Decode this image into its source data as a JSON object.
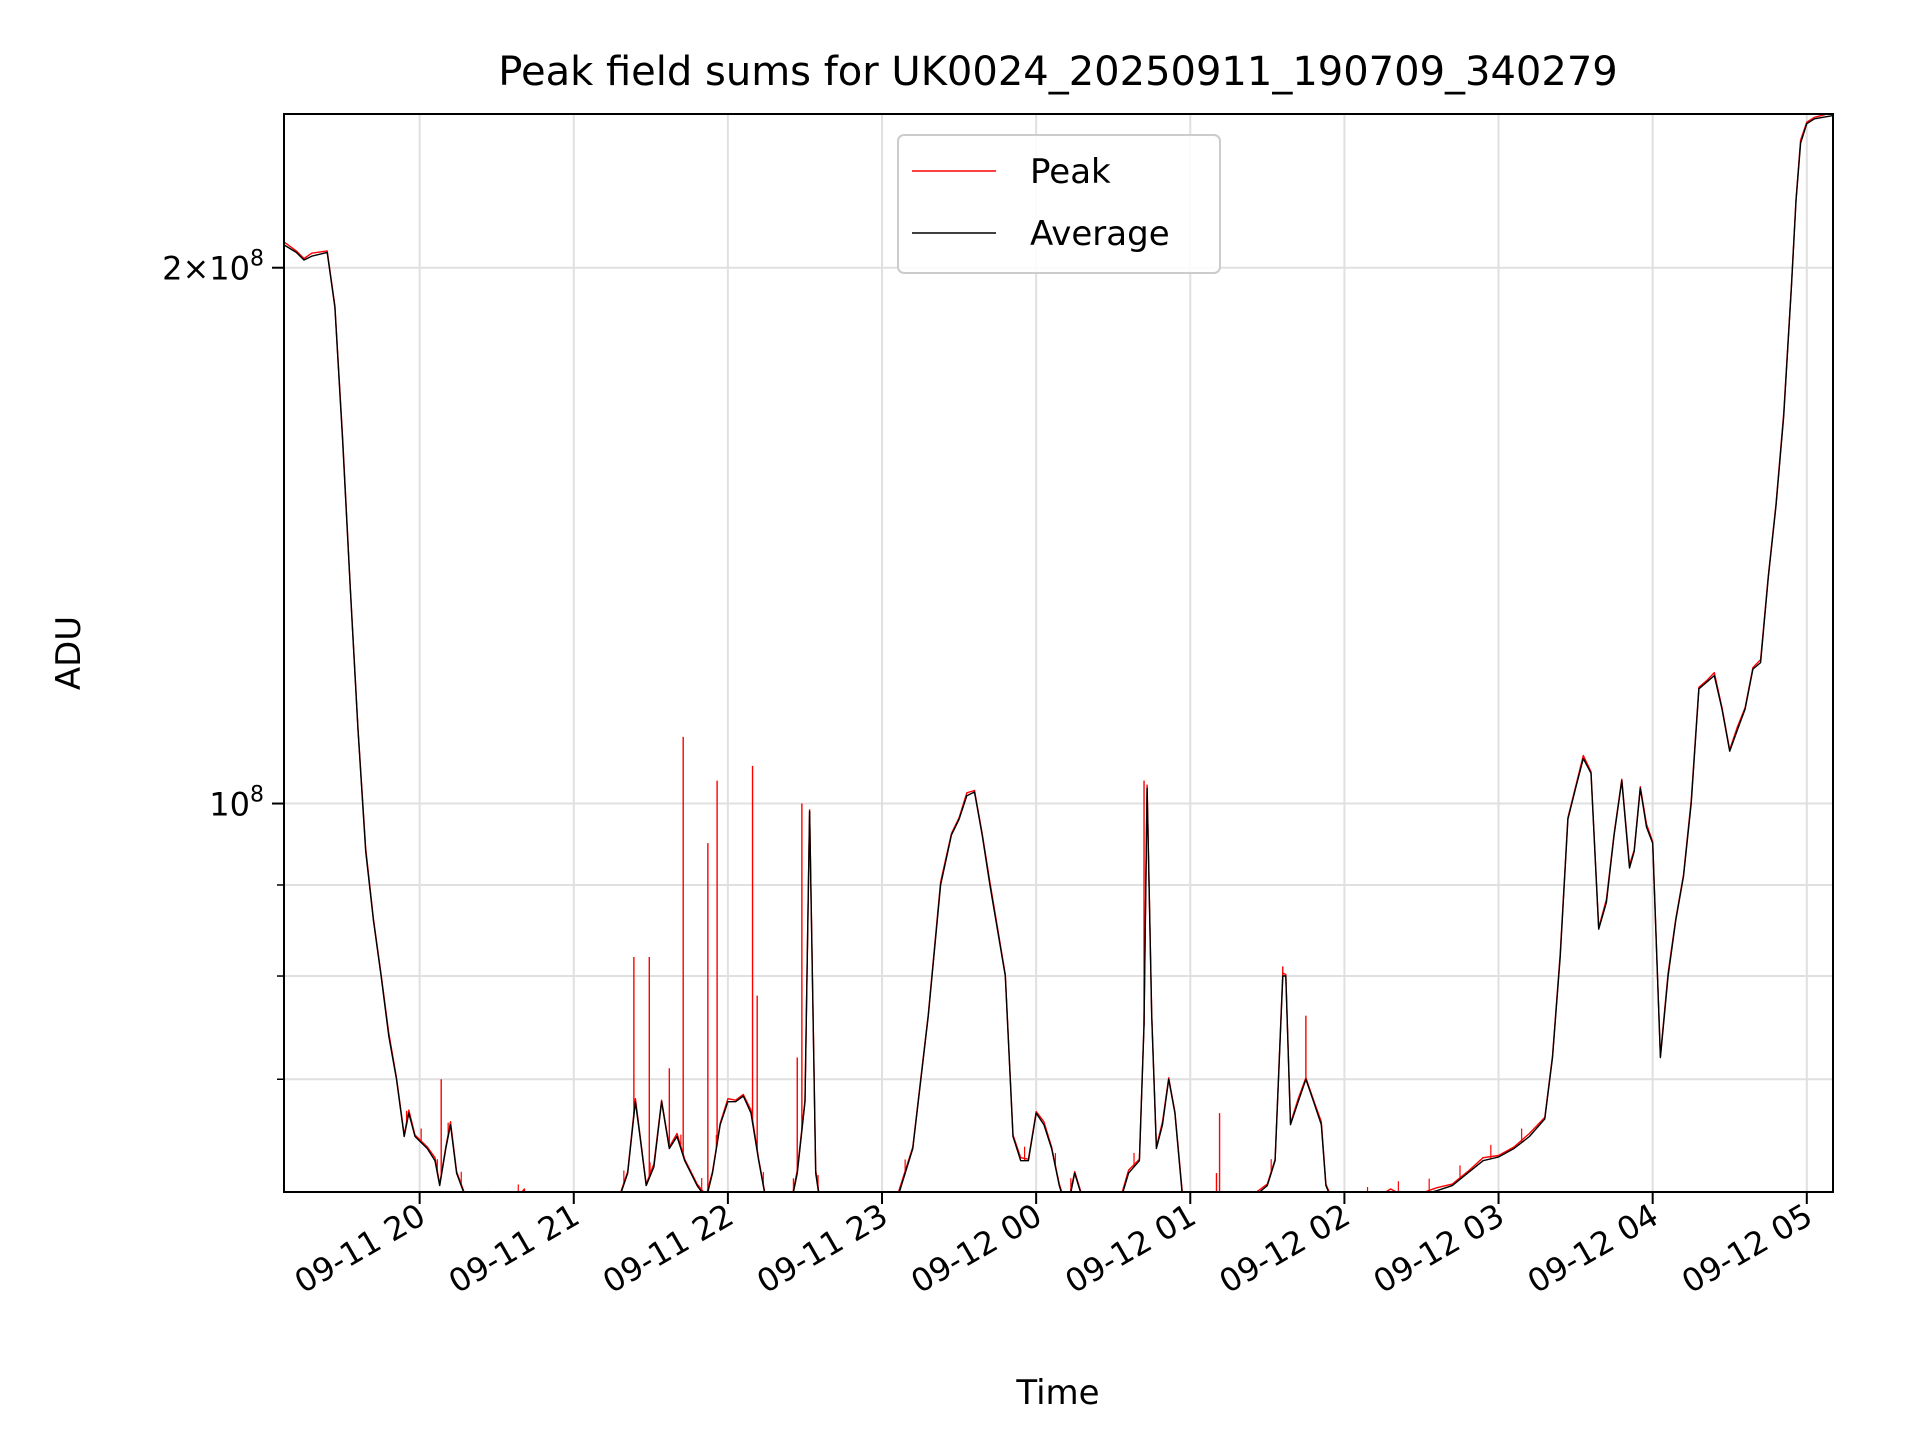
{
  "chart_data": {
    "type": "line",
    "title": "Peak field sums for UK0024_20250911_190709_340279",
    "xlabel": "Time",
    "ylabel": "ADU",
    "x_unit": "hours on the time axis starting 09-11 00:00",
    "y_scale": "log",
    "xlim": [
      19.12,
      29.17
    ],
    "ylim": [
      60500000,
      244000000
    ],
    "xticks": [
      {
        "x": 20,
        "label": "09-11 20"
      },
      {
        "x": 21,
        "label": "09-11 21"
      },
      {
        "x": 22,
        "label": "09-11 22"
      },
      {
        "x": 23,
        "label": "09-11 23"
      },
      {
        "x": 24,
        "label": "09-12 00"
      },
      {
        "x": 25,
        "label": "09-12 01"
      },
      {
        "x": 26,
        "label": "09-12 02"
      },
      {
        "x": 27,
        "label": "09-12 03"
      },
      {
        "x": 28,
        "label": "09-12 04"
      },
      {
        "x": 29,
        "label": "09-12 05"
      }
    ],
    "yticks_major": [
      {
        "y": 100000000,
        "mant": "10",
        "exp": "8"
      },
      {
        "y": 200000000,
        "mant": "2×10",
        "exp": "8"
      }
    ],
    "yticks_minor": [
      60000000,
      70000000,
      80000000,
      90000000
    ],
    "grid": true,
    "legend_position": "top-center",
    "series": [
      {
        "name": "Peak",
        "color": "#ff0000",
        "spikes": [
          [
            20.14,
            70000000
          ],
          [
            21.39,
            82000000
          ],
          [
            21.49,
            82000000
          ],
          [
            21.62,
            71000000
          ],
          [
            21.71,
            109000000
          ],
          [
            21.87,
            95000000
          ],
          [
            21.93,
            103000000
          ],
          [
            22.16,
            105000000
          ],
          [
            22.19,
            78000000
          ],
          [
            22.45,
            72000000
          ],
          [
            22.48,
            100000000
          ],
          [
            24.7,
            103000000
          ],
          [
            25.17,
            62000000
          ],
          [
            25.19,
            67000000
          ],
          [
            25.6,
            81000000
          ],
          [
            25.75,
            76000000
          ]
        ]
      },
      {
        "name": "Average",
        "color": "#000000",
        "points": [
          [
            19.12,
            206000000
          ],
          [
            19.2,
            204000000
          ],
          [
            19.25,
            202000000
          ],
          [
            19.3,
            203000000
          ],
          [
            19.4,
            204000000
          ],
          [
            19.45,
            190000000
          ],
          [
            19.5,
            160000000
          ],
          [
            19.55,
            132000000
          ],
          [
            19.6,
            110000000
          ],
          [
            19.65,
            94000000
          ],
          [
            19.7,
            86000000
          ],
          [
            19.75,
            80000000
          ],
          [
            19.8,
            74000000
          ],
          [
            19.85,
            70000000
          ],
          [
            19.9,
            65000000
          ],
          [
            19.93,
            67000000
          ],
          [
            19.97,
            65000000
          ],
          [
            20.05,
            64000000
          ],
          [
            20.1,
            63000000
          ],
          [
            20.13,
            61000000
          ],
          [
            20.17,
            64000000
          ],
          [
            20.2,
            66000000
          ],
          [
            20.24,
            62000000
          ],
          [
            20.3,
            60000000
          ],
          [
            20.4,
            59500000
          ],
          [
            20.5,
            59500000
          ],
          [
            20.6,
            59500000
          ],
          [
            20.68,
            60500000
          ],
          [
            20.71,
            57000000
          ],
          [
            20.8,
            56800000
          ],
          [
            20.9,
            57200000
          ],
          [
            21.0,
            58000000
          ],
          [
            21.1,
            58800000
          ],
          [
            21.2,
            59500000
          ],
          [
            21.3,
            60200000
          ],
          [
            21.35,
            62000000
          ],
          [
            21.4,
            68000000
          ],
          [
            21.43,
            65000000
          ],
          [
            21.47,
            61000000
          ],
          [
            21.52,
            62500000
          ],
          [
            21.57,
            68000000
          ],
          [
            21.62,
            64000000
          ],
          [
            21.67,
            65000000
          ],
          [
            21.72,
            63000000
          ],
          [
            21.8,
            61000000
          ],
          [
            21.86,
            60000000
          ],
          [
            21.9,
            62000000
          ],
          [
            21.95,
            66000000
          ],
          [
            22.0,
            68000000
          ],
          [
            22.05,
            68000000
          ],
          [
            22.1,
            68500000
          ],
          [
            22.15,
            67000000
          ],
          [
            22.2,
            63000000
          ],
          [
            22.26,
            59000000
          ],
          [
            22.3,
            58000000
          ],
          [
            22.35,
            58200000
          ],
          [
            22.4,
            59000000
          ],
          [
            22.45,
            62000000
          ],
          [
            22.5,
            68000000
          ],
          [
            22.53,
            99000000
          ],
          [
            22.57,
            62000000
          ],
          [
            22.6,
            59500000
          ],
          [
            22.7,
            59200000
          ],
          [
            22.8,
            59000000
          ],
          [
            22.9,
            59000000
          ],
          [
            23.0,
            59000000
          ],
          [
            23.1,
            60000000
          ],
          [
            23.2,
            64000000
          ],
          [
            23.3,
            76000000
          ],
          [
            23.38,
            90000000
          ],
          [
            23.45,
            96000000
          ],
          [
            23.5,
            98000000
          ],
          [
            23.55,
            101000000
          ],
          [
            23.6,
            101500000
          ],
          [
            23.65,
            96000000
          ],
          [
            23.7,
            90000000
          ],
          [
            23.8,
            80000000
          ],
          [
            23.85,
            65000000
          ],
          [
            23.9,
            63000000
          ],
          [
            23.95,
            63000000
          ],
          [
            24.0,
            67000000
          ],
          [
            24.05,
            66000000
          ],
          [
            24.1,
            64000000
          ],
          [
            24.15,
            61000000
          ],
          [
            24.2,
            59000000
          ],
          [
            24.25,
            62000000
          ],
          [
            24.3,
            60000000
          ],
          [
            24.35,
            58000000
          ],
          [
            24.4,
            56900000
          ],
          [
            24.5,
            58000000
          ],
          [
            24.6,
            62000000
          ],
          [
            24.67,
            63000000
          ],
          [
            24.7,
            75000000
          ],
          [
            24.72,
            102000000
          ],
          [
            24.75,
            76000000
          ],
          [
            24.78,
            64000000
          ],
          [
            24.82,
            66000000
          ],
          [
            24.86,
            70000000
          ],
          [
            24.9,
            67000000
          ],
          [
            24.95,
            60000000
          ],
          [
            25.0,
            57500000
          ],
          [
            25.1,
            58200000
          ],
          [
            25.2,
            59000000
          ],
          [
            25.25,
            59500000
          ],
          [
            25.3,
            59000000
          ],
          [
            25.4,
            60000000
          ],
          [
            25.5,
            61000000
          ],
          [
            25.55,
            63000000
          ],
          [
            25.6,
            80000000
          ],
          [
            25.62,
            80000000
          ],
          [
            25.65,
            66000000
          ],
          [
            25.7,
            68000000
          ],
          [
            25.75,
            70000000
          ],
          [
            25.8,
            68000000
          ],
          [
            25.85,
            66000000
          ],
          [
            25.88,
            61000000
          ],
          [
            25.95,
            59000000
          ],
          [
            26.0,
            59500000
          ],
          [
            26.1,
            59700000
          ],
          [
            26.2,
            59900000
          ],
          [
            26.3,
            60500000
          ],
          [
            26.4,
            60000000
          ],
          [
            26.5,
            60300000
          ],
          [
            26.6,
            60600000
          ],
          [
            26.7,
            61000000
          ],
          [
            26.8,
            62000000
          ],
          [
            26.9,
            63000000
          ],
          [
            27.0,
            63300000
          ],
          [
            27.1,
            64000000
          ],
          [
            27.2,
            65000000
          ],
          [
            27.3,
            66500000
          ],
          [
            27.35,
            72000000
          ],
          [
            27.4,
            82000000
          ],
          [
            27.45,
            98000000
          ],
          [
            27.5,
            102000000
          ],
          [
            27.55,
            106000000
          ],
          [
            27.6,
            104000000
          ],
          [
            27.65,
            85000000
          ],
          [
            27.7,
            88000000
          ],
          [
            27.75,
            96000000
          ],
          [
            27.8,
            103000000
          ],
          [
            27.85,
            92000000
          ],
          [
            27.88,
            94000000
          ],
          [
            27.92,
            102000000
          ],
          [
            27.96,
            97000000
          ],
          [
            28.0,
            95000000
          ],
          [
            28.05,
            72000000
          ],
          [
            28.1,
            80000000
          ],
          [
            28.15,
            86000000
          ],
          [
            28.2,
            91000000
          ],
          [
            28.25,
            100000000
          ],
          [
            28.3,
            116000000
          ],
          [
            28.35,
            117000000
          ],
          [
            28.4,
            118000000
          ],
          [
            28.45,
            113000000
          ],
          [
            28.5,
            107000000
          ],
          [
            28.55,
            110000000
          ],
          [
            28.6,
            113000000
          ],
          [
            28.65,
            119000000
          ],
          [
            28.7,
            120000000
          ],
          [
            28.75,
            134000000
          ],
          [
            28.8,
            147000000
          ],
          [
            28.85,
            165000000
          ],
          [
            28.9,
            195000000
          ],
          [
            28.93,
            218000000
          ],
          [
            28.96,
            235000000
          ],
          [
            29.0,
            241000000
          ],
          [
            29.05,
            242500000
          ],
          [
            29.17,
            243500000
          ]
        ]
      }
    ]
  }
}
